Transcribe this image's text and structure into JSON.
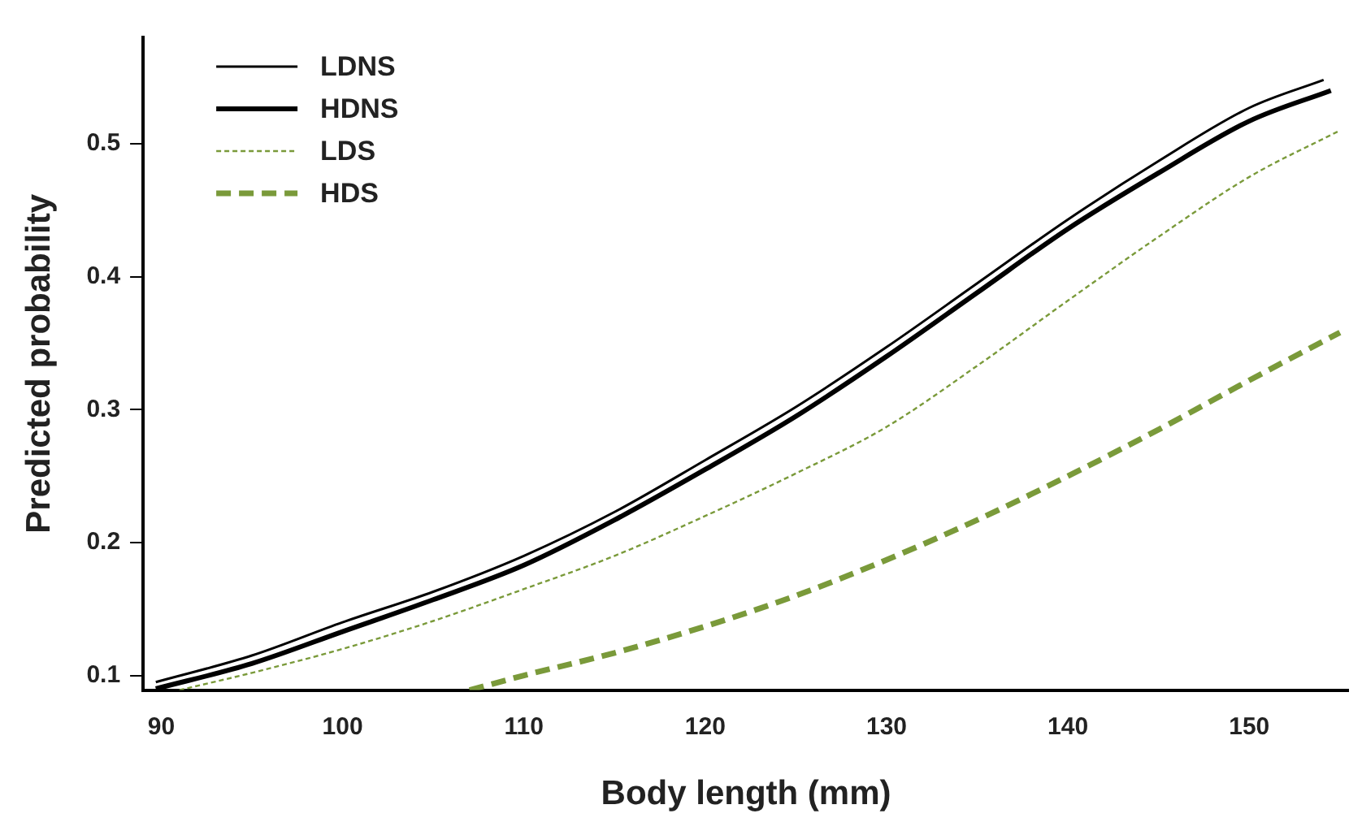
{
  "chart_data": {
    "type": "line",
    "xlabel": "Body length (mm)",
    "ylabel": "Predicted probability",
    "xlim": [
      89,
      155.5
    ],
    "ylim": [
      0.089,
      0.58
    ],
    "xticks": [
      90,
      100,
      110,
      120,
      130,
      140,
      150
    ],
    "yticks": [
      0.1,
      0.2,
      0.3,
      0.4,
      0.5
    ],
    "grid": false,
    "legend": "top left",
    "marker": "none",
    "series": [
      {
        "name": "LDNS",
        "color": "#000000",
        "line_style": "solid",
        "x": [
          89.7,
          95,
          100,
          105,
          110,
          115,
          120,
          125,
          130,
          135,
          140,
          145,
          150,
          154.1
        ],
        "values": [
          0.095,
          0.115,
          0.14,
          0.163,
          0.19,
          0.223,
          0.262,
          0.302,
          0.347,
          0.395,
          0.443,
          0.487,
          0.527,
          0.548
        ]
      },
      {
        "name": "HDNS",
        "color": "#000000",
        "line_style": "solid",
        "x": [
          89.7,
          95,
          100,
          105,
          110,
          115,
          120,
          125,
          130,
          135,
          140,
          145,
          150,
          154.5
        ],
        "values": [
          0.09,
          0.109,
          0.133,
          0.157,
          0.183,
          0.217,
          0.255,
          0.295,
          0.34,
          0.388,
          0.436,
          0.478,
          0.517,
          0.54
        ]
      },
      {
        "name": "LDS",
        "color": "#7a9a3a",
        "line_style": "dotted",
        "x": [
          91,
          95,
          100,
          105,
          110,
          115,
          120,
          125,
          130,
          135,
          140,
          145,
          150,
          155
        ],
        "values": [
          0.089,
          0.102,
          0.12,
          0.141,
          0.165,
          0.19,
          0.22,
          0.252,
          0.287,
          0.333,
          0.382,
          0.43,
          0.475,
          0.51
        ]
      },
      {
        "name": "HDS",
        "color": "#7a9a3a",
        "line_style": "dashed",
        "x": [
          107,
          110,
          115,
          120,
          125,
          130,
          135,
          140,
          145,
          150,
          155
        ],
        "values": [
          0.089,
          0.1,
          0.117,
          0.137,
          0.16,
          0.187,
          0.217,
          0.25,
          0.285,
          0.322,
          0.358
        ]
      }
    ]
  }
}
